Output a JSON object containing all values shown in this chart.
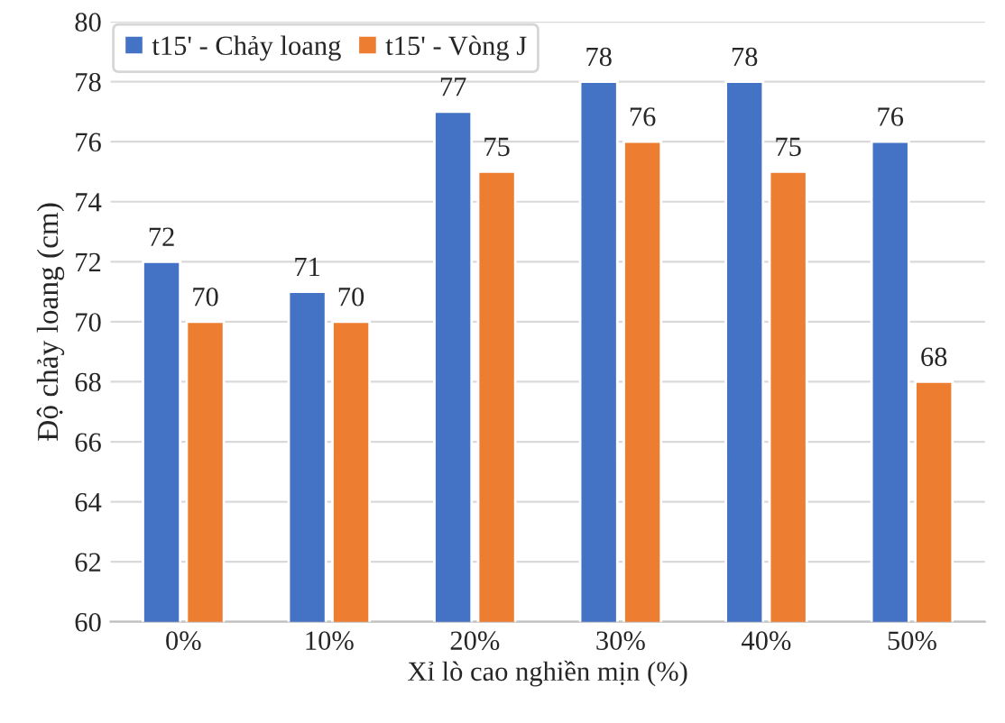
{
  "chart_data": {
    "type": "bar",
    "xlabel": "Xỉ lò cao nghiền mịn (%)",
    "ylabel": "Độ chảy loang (cm)",
    "categories": [
      "0%",
      "10%",
      "20%",
      "30%",
      "40%",
      "50%"
    ],
    "series": [
      {
        "name": "t15' - Chảy loang",
        "color": "#4472c4",
        "values": [
          72,
          71,
          77,
          78,
          78,
          76
        ]
      },
      {
        "name": "t15' - Vòng J",
        "color": "#ed7d31",
        "values": [
          70,
          70,
          75,
          76,
          75,
          68
        ]
      }
    ],
    "ylim": [
      60,
      80
    ],
    "yticks": [
      60,
      62,
      64,
      66,
      68,
      70,
      72,
      74,
      76,
      78,
      80
    ],
    "grid": "y",
    "legend": "top left",
    "data_labels": true
  }
}
